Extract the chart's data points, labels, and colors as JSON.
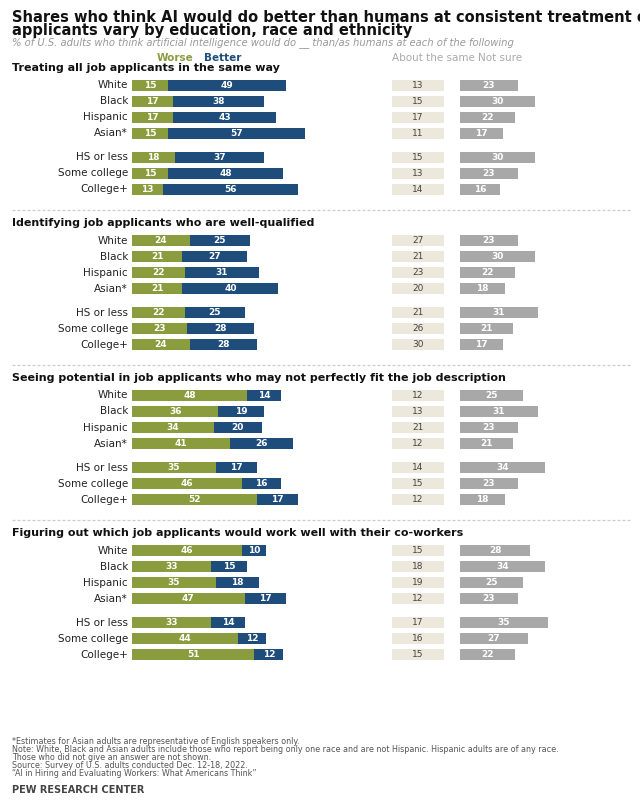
{
  "title": "Shares who think AI would do better than humans at consistent treatment of job applicants vary by education, race and ethnicity",
  "subtitle": "% of U.S. adults who think artificial intelligence would do __ than/as humans at each of the following",
  "sections": [
    {
      "title": "Treating all job applicants in the same way",
      "rows": [
        {
          "label": "White",
          "worse": 15,
          "better": 49,
          "same": 13,
          "notsure": 23
        },
        {
          "label": "Black",
          "worse": 17,
          "better": 38,
          "same": 15,
          "notsure": 30
        },
        {
          "label": "Hispanic",
          "worse": 17,
          "better": 43,
          "same": 17,
          "notsure": 22
        },
        {
          "label": "Asian*",
          "worse": 15,
          "better": 57,
          "same": 11,
          "notsure": 17
        },
        {
          "label": "HS or less",
          "worse": 18,
          "better": 37,
          "same": 15,
          "notsure": 30
        },
        {
          "label": "Some college",
          "worse": 15,
          "better": 48,
          "same": 13,
          "notsure": 23
        },
        {
          "label": "College+",
          "worse": 13,
          "better": 56,
          "same": 14,
          "notsure": 16
        }
      ]
    },
    {
      "title": "Identifying job applicants who are well-qualified",
      "rows": [
        {
          "label": "White",
          "worse": 24,
          "better": 25,
          "same": 27,
          "notsure": 23
        },
        {
          "label": "Black",
          "worse": 21,
          "better": 27,
          "same": 21,
          "notsure": 30
        },
        {
          "label": "Hispanic",
          "worse": 22,
          "better": 31,
          "same": 23,
          "notsure": 22
        },
        {
          "label": "Asian*",
          "worse": 21,
          "better": 40,
          "same": 20,
          "notsure": 18
        },
        {
          "label": "HS or less",
          "worse": 22,
          "better": 25,
          "same": 21,
          "notsure": 31
        },
        {
          "label": "Some college",
          "worse": 23,
          "better": 28,
          "same": 26,
          "notsure": 21
        },
        {
          "label": "College+",
          "worse": 24,
          "better": 28,
          "same": 30,
          "notsure": 17
        }
      ]
    },
    {
      "title": "Seeing potential in job applicants who may not perfectly fit the job description",
      "rows": [
        {
          "label": "White",
          "worse": 48,
          "better": 14,
          "same": 12,
          "notsure": 25
        },
        {
          "label": "Black",
          "worse": 36,
          "better": 19,
          "same": 13,
          "notsure": 31
        },
        {
          "label": "Hispanic",
          "worse": 34,
          "better": 20,
          "same": 21,
          "notsure": 23
        },
        {
          "label": "Asian*",
          "worse": 41,
          "better": 26,
          "same": 12,
          "notsure": 21
        },
        {
          "label": "HS or less",
          "worse": 35,
          "better": 17,
          "same": 14,
          "notsure": 34
        },
        {
          "label": "Some college",
          "worse": 46,
          "better": 16,
          "same": 15,
          "notsure": 23
        },
        {
          "label": "College+",
          "worse": 52,
          "better": 17,
          "same": 12,
          "notsure": 18
        }
      ]
    },
    {
      "title": "Figuring out which job applicants would work well with their co-workers",
      "rows": [
        {
          "label": "White",
          "worse": 46,
          "better": 10,
          "same": 15,
          "notsure": 28
        },
        {
          "label": "Black",
          "worse": 33,
          "better": 15,
          "same": 18,
          "notsure": 34
        },
        {
          "label": "Hispanic",
          "worse": 35,
          "better": 18,
          "same": 19,
          "notsure": 25
        },
        {
          "label": "Asian*",
          "worse": 47,
          "better": 17,
          "same": 12,
          "notsure": 23
        },
        {
          "label": "HS or less",
          "worse": 33,
          "better": 14,
          "same": 17,
          "notsure": 35
        },
        {
          "label": "Some college",
          "worse": 44,
          "better": 12,
          "same": 16,
          "notsure": 27
        },
        {
          "label": "College+",
          "worse": 51,
          "better": 12,
          "same": 15,
          "notsure": 22
        }
      ]
    }
  ],
  "colors": {
    "worse": "#8b9c3e",
    "better": "#1e4d7b",
    "same": "#ede8dc",
    "notsure": "#a8a8a8",
    "background": "#ffffff"
  },
  "notes": [
    "*Estimates for Asian adults are representative of English speakers only.",
    "Note: White, Black and Asian adults include those who report being only one race and are not Hispanic. Hispanic adults are of any race.",
    "Those who did not give an answer are not shown.",
    "Source: Survey of U.S. adults conducted Dec. 12-18, 2022.",
    "“AI in Hiring and Evaluating Workers: What Americans Think”"
  ],
  "source_label": "PEW RESEARCH CENTER"
}
